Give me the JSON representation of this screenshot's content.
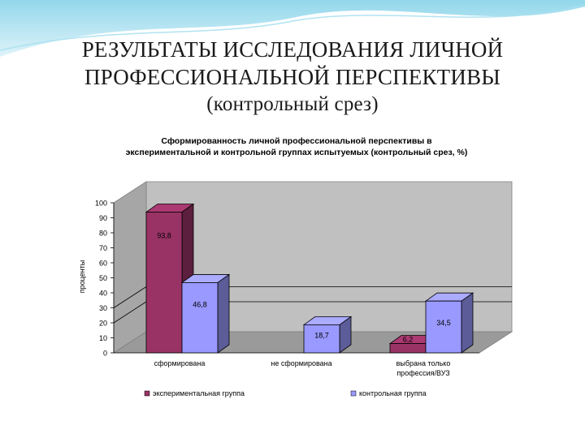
{
  "slide": {
    "title_line1": "РЕЗУЛЬТАТЫ ИССЛЕДОВАНИЯ ЛИЧНОЙ",
    "title_line2": "ПРОФЕССИОНАЛЬНОЙ ПЕРСПЕКТИВЫ",
    "title_line3": "(контрольный срез)"
  },
  "chart_data": {
    "type": "bar",
    "title_line1": "Сформированность личной профессиональной перспективы в",
    "title_line2": "экспериментальной и контрольной группах испытуемых (контрольный срез, %)",
    "ylabel": "проценты",
    "xlabel": "",
    "ylim": [
      0,
      100
    ],
    "yticks": [
      0,
      10,
      20,
      30,
      40,
      50,
      60,
      70,
      80,
      90,
      100
    ],
    "categories": [
      [
        "сформирована"
      ],
      [
        "не сформирована"
      ],
      [
        "выбрана только",
        "профессия/ВУЗ"
      ]
    ],
    "series": [
      {
        "name": "экспериментальная группа",
        "values": [
          93.8,
          null,
          6.2
        ],
        "labels": [
          "93,8",
          "",
          "6,2"
        ],
        "color": "#993366"
      },
      {
        "name": "контрольная группа",
        "values": [
          46.8,
          18.7,
          34.5
        ],
        "labels": [
          "46,8",
          "18,7",
          "34,5"
        ],
        "color": "#9999ff"
      }
    ],
    "legend_position": "bottom",
    "grid": false,
    "three_d": true
  }
}
